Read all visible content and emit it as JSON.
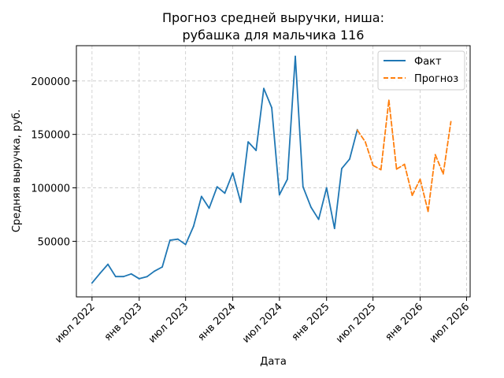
{
  "chart_data": {
    "type": "line",
    "title": [
      "Прогноз средней выручки, ниша:",
      "рубашка для мальчика 116"
    ],
    "xlabel": "Дата",
    "ylabel": "Средняя выручка, руб.",
    "x_ticks": [
      {
        "label": "июл 2022",
        "date": "2022-07-01"
      },
      {
        "label": "янв 2023",
        "date": "2023-01-01"
      },
      {
        "label": "июл 2023",
        "date": "2023-07-01"
      },
      {
        "label": "янв 2024",
        "date": "2024-01-01"
      },
      {
        "label": "июл 2024",
        "date": "2024-07-01"
      },
      {
        "label": "янв 2025",
        "date": "2025-01-01"
      },
      {
        "label": "июл 2025",
        "date": "2025-07-01"
      },
      {
        "label": "янв 2026",
        "date": "2026-01-01"
      },
      {
        "label": "июл 2026",
        "date": "2026-07-01"
      }
    ],
    "y_ticks": [
      50000,
      100000,
      150000,
      200000
    ],
    "xlim": [
      "2022-05-01",
      "2026-07-15"
    ],
    "ylim": [
      -2000,
      233000
    ],
    "grid": true,
    "legend_position": "top-right",
    "series": [
      {
        "name": "Факт",
        "color": "#1f77b4",
        "style": "solid",
        "points": [
          {
            "x": "2022-07-01",
            "y": 11000
          },
          {
            "x": "2022-08-01",
            "y": 20000
          },
          {
            "x": "2022-09-01",
            "y": 28500
          },
          {
            "x": "2022-10-01",
            "y": 17000
          },
          {
            "x": "2022-11-01",
            "y": 17000
          },
          {
            "x": "2022-12-01",
            "y": 19500
          },
          {
            "x": "2023-01-01",
            "y": 15000
          },
          {
            "x": "2023-02-01",
            "y": 17000
          },
          {
            "x": "2023-03-01",
            "y": 22000
          },
          {
            "x": "2023-04-01",
            "y": 26000
          },
          {
            "x": "2023-05-01",
            "y": 51000
          },
          {
            "x": "2023-06-01",
            "y": 52000
          },
          {
            "x": "2023-07-01",
            "y": 47000
          },
          {
            "x": "2023-08-01",
            "y": 64000
          },
          {
            "x": "2023-09-01",
            "y": 92000
          },
          {
            "x": "2023-10-01",
            "y": 81000
          },
          {
            "x": "2023-11-01",
            "y": 101000
          },
          {
            "x": "2023-12-01",
            "y": 95000
          },
          {
            "x": "2024-01-01",
            "y": 114000
          },
          {
            "x": "2024-02-01",
            "y": 86500
          },
          {
            "x": "2024-03-01",
            "y": 143000
          },
          {
            "x": "2024-04-01",
            "y": 135000
          },
          {
            "x": "2024-05-01",
            "y": 193000
          },
          {
            "x": "2024-06-01",
            "y": 175000
          },
          {
            "x": "2024-07-01",
            "y": 93500
          },
          {
            "x": "2024-08-01",
            "y": 108000
          },
          {
            "x": "2024-09-01",
            "y": 223000
          },
          {
            "x": "2024-10-01",
            "y": 101000
          },
          {
            "x": "2024-11-01",
            "y": 82000
          },
          {
            "x": "2024-12-01",
            "y": 70500
          },
          {
            "x": "2025-01-01",
            "y": 100000
          },
          {
            "x": "2025-02-01",
            "y": 62000
          },
          {
            "x": "2025-03-01",
            "y": 118000
          },
          {
            "x": "2025-04-01",
            "y": 127000
          },
          {
            "x": "2025-05-01",
            "y": 154500
          }
        ]
      },
      {
        "name": "Прогноз",
        "color": "#ff7f0e",
        "style": "dashed",
        "points": [
          {
            "x": "2025-05-01",
            "y": 154000
          },
          {
            "x": "2025-06-01",
            "y": 143000
          },
          {
            "x": "2025-07-01",
            "y": 121000
          },
          {
            "x": "2025-08-01",
            "y": 117000
          },
          {
            "x": "2025-09-01",
            "y": 182000
          },
          {
            "x": "2025-10-01",
            "y": 117500
          },
          {
            "x": "2025-11-01",
            "y": 122000
          },
          {
            "x": "2025-12-01",
            "y": 93000
          },
          {
            "x": "2026-01-01",
            "y": 108000
          },
          {
            "x": "2026-02-01",
            "y": 78000
          },
          {
            "x": "2026-03-01",
            "y": 131000
          },
          {
            "x": "2026-04-01",
            "y": 113000
          },
          {
            "x": "2026-05-01",
            "y": 162000
          }
        ]
      }
    ]
  }
}
